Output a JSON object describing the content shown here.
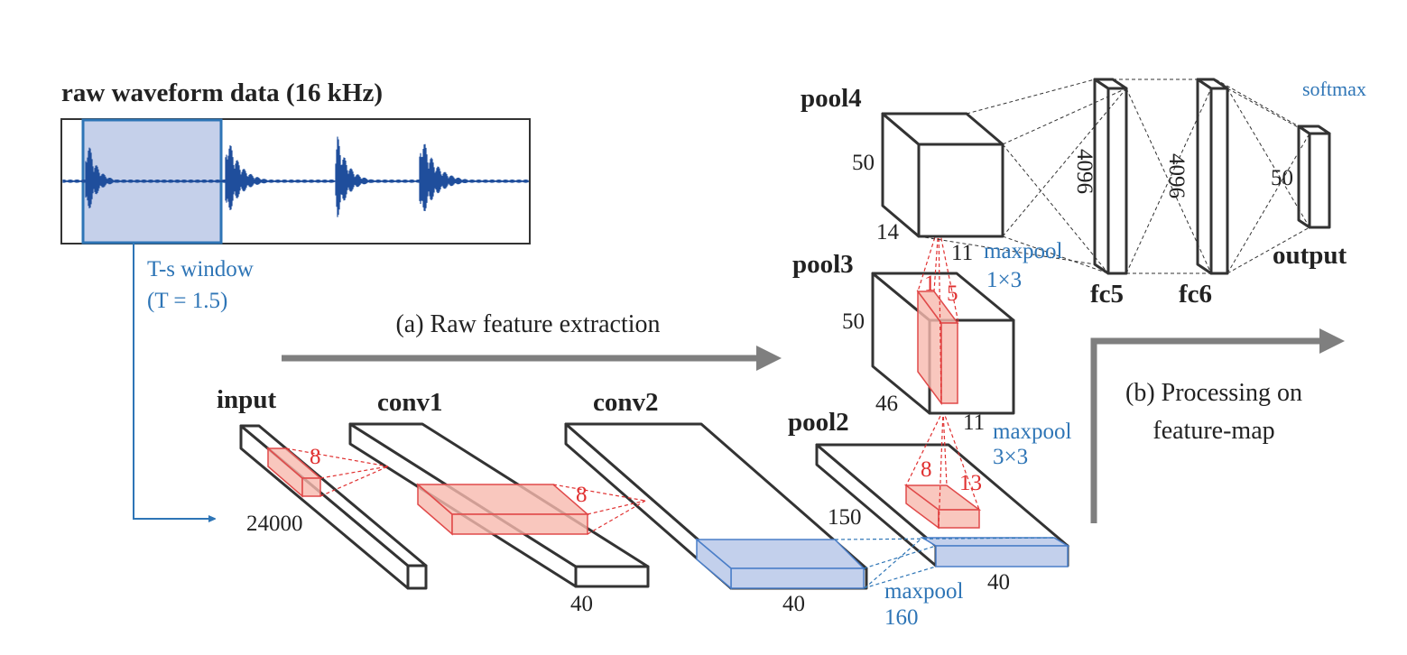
{
  "waveform": {
    "title": "raw waveform data (16 kHz)",
    "window_label": "T-s window",
    "window_param": "(T = 1.5)"
  },
  "sections": {
    "a": "(a) Raw feature extraction",
    "b": [
      "(b) Processing on",
      "feature-map"
    ]
  },
  "layers": {
    "input": {
      "name": "input",
      "length": 24000,
      "kernel": 8
    },
    "conv1": {
      "name": "conv1",
      "kernel": 8,
      "depth": 40
    },
    "conv2": {
      "name": "conv2",
      "depth": 40,
      "pool": [
        "maxpool",
        160
      ]
    },
    "pool2": {
      "name": "pool2",
      "length": 150,
      "depth": 40,
      "kernel_h": 8,
      "kernel_w": 13,
      "pool": [
        "maxpool",
        "3×3"
      ]
    },
    "pool3": {
      "name": "pool3",
      "height": 50,
      "length": 46,
      "width": 11,
      "kernel_h": 1,
      "kernel_w": 5,
      "pool": [
        "maxpool",
        "1×3"
      ]
    },
    "pool4": {
      "name": "pool4",
      "height": 50,
      "length": 14,
      "width": 11
    },
    "fc5": {
      "name": "fc5",
      "units": 4096
    },
    "fc6": {
      "name": "fc6",
      "units": 4096
    },
    "output": {
      "name": "output",
      "units": 50,
      "activation": "softmax"
    }
  }
}
